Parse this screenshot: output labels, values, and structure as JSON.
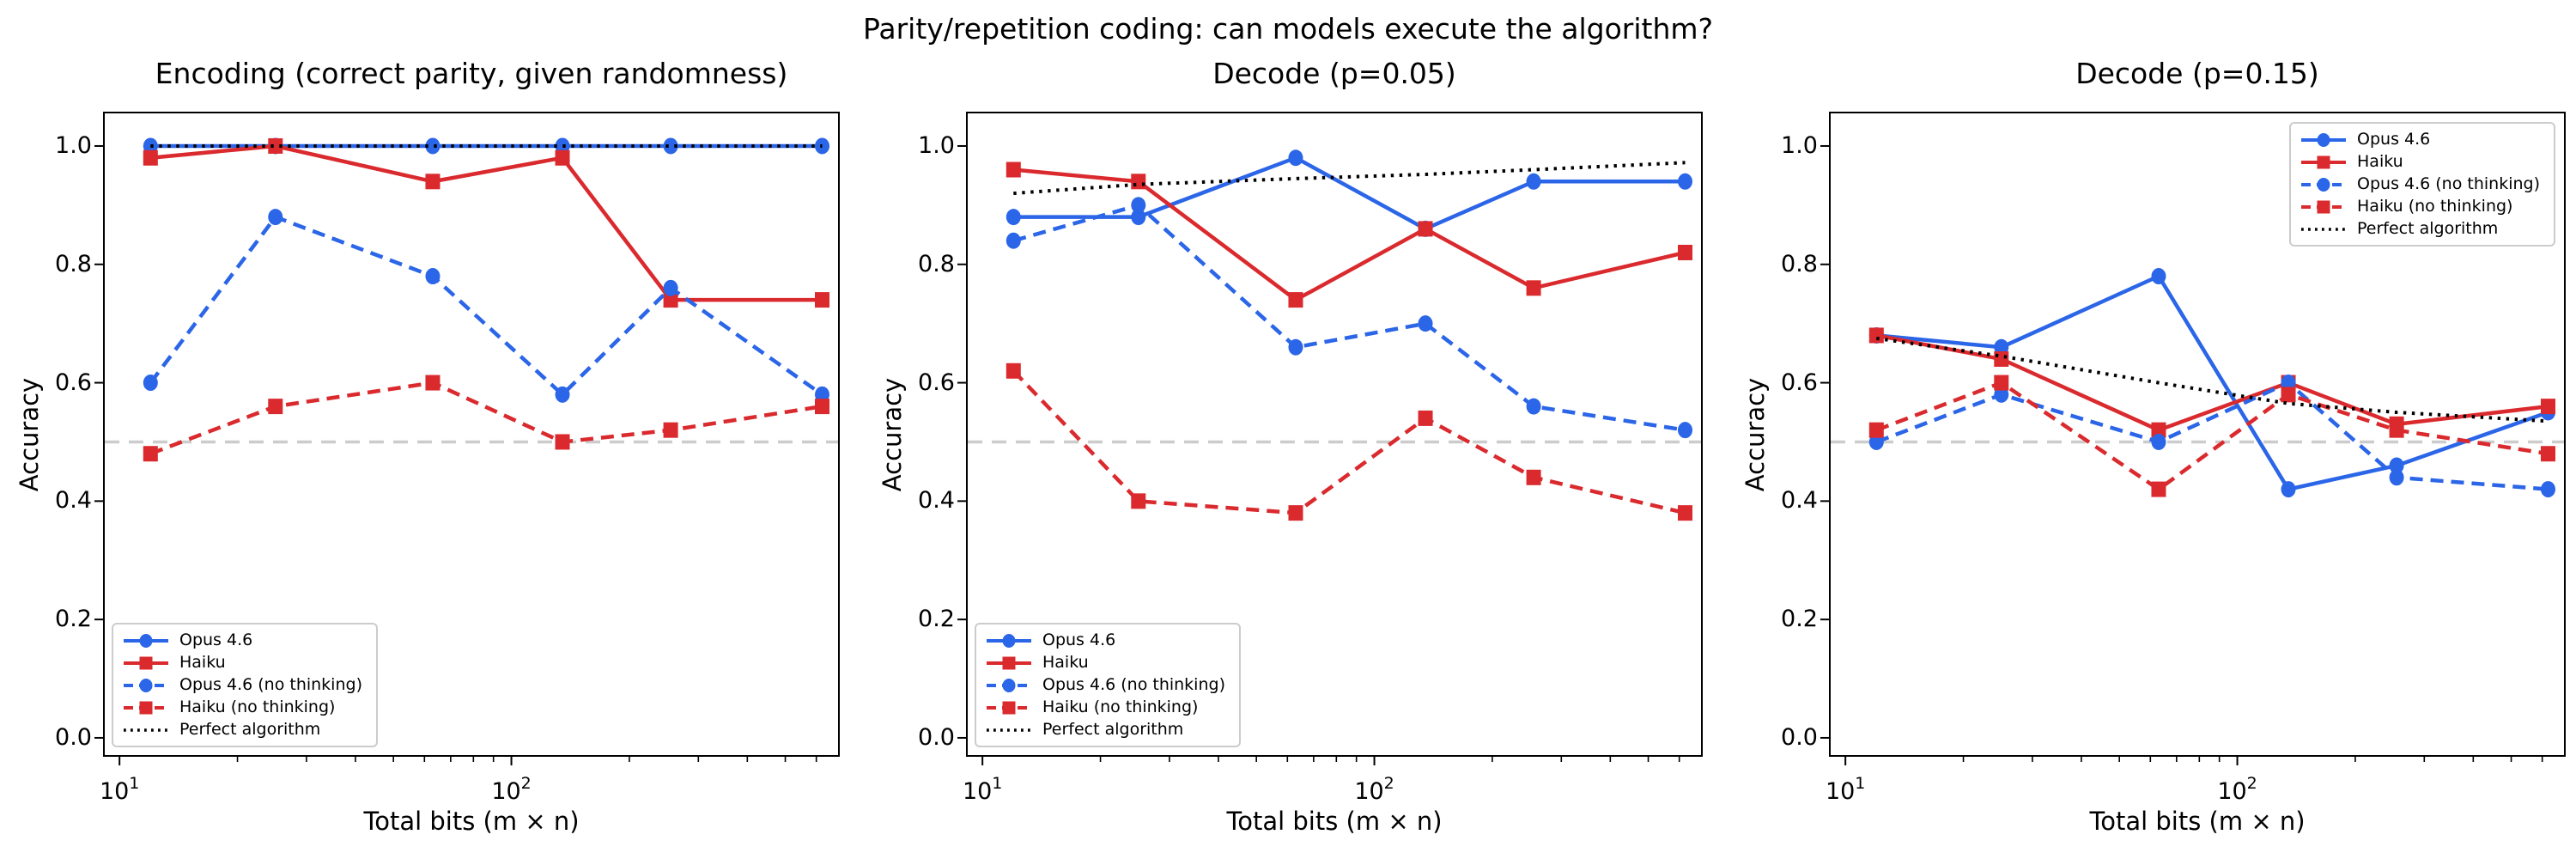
{
  "figure": {
    "suptitle": "Parity/repetition coding: can models execute the algorithm?",
    "background": "#ffffff"
  },
  "axis": {
    "xlabel": "Total bits (m × n)",
    "ylabel": "Accuracy",
    "x_scale": "log",
    "x_major_ticks": [
      {
        "text": "10",
        "sup": "1",
        "value": 10
      },
      {
        "text": "10",
        "sup": "2",
        "value": 100
      }
    ],
    "x_minor_ticks": [
      20,
      30,
      40,
      50,
      60,
      70,
      80,
      90,
      200,
      300,
      400,
      500,
      600
    ],
    "y_ticks": [
      "0.0",
      "0.2",
      "0.4",
      "0.6",
      "0.8",
      "1.0"
    ],
    "y_tick_values": [
      0.0,
      0.2,
      0.4,
      0.6,
      0.8,
      1.0
    ],
    "xlim_log10": [
      0.958,
      2.838
    ],
    "ylim": [
      -0.032,
      1.058
    ]
  },
  "chance_line": {
    "value": 0.5,
    "color": "#cccccc",
    "style": "dashed"
  },
  "colors": {
    "opus_blue": "#2b65e8",
    "haiku_red": "#da2a2e",
    "perfect_black": "#000000",
    "chance_gray": "#cccccc"
  },
  "chart_data": [
    {
      "type": "line",
      "title": "Encoding (correct parity, given randomness)",
      "xlabel": "Total bits (m × n)",
      "ylabel": "Accuracy",
      "x_scale": "log",
      "xlim": [
        9.1,
        689
      ],
      "ylim": [
        0.0,
        1.05
      ],
      "grid": false,
      "legend_position": "lower left",
      "x": [
        12,
        25,
        63,
        135,
        255,
        621
      ],
      "series": [
        {
          "name": "Opus 4.6",
          "color": "#2b65e8",
          "line": "solid",
          "marker": "circle",
          "values": [
            1.0,
            1.0,
            1.0,
            1.0,
            1.0,
            1.0
          ]
        },
        {
          "name": "Haiku",
          "color": "#da2a2e",
          "line": "solid",
          "marker": "square",
          "values": [
            0.98,
            1.0,
            0.94,
            0.98,
            0.74,
            0.74
          ]
        },
        {
          "name": "Opus 4.6 (no thinking)",
          "color": "#2b65e8",
          "line": "dashed",
          "marker": "circle",
          "values": [
            0.6,
            0.88,
            0.78,
            0.58,
            0.76,
            0.58
          ]
        },
        {
          "name": "Haiku (no thinking)",
          "color": "#da2a2e",
          "line": "dashed",
          "marker": "square",
          "values": [
            0.48,
            0.56,
            0.6,
            0.5,
            0.52,
            0.56
          ]
        },
        {
          "name": "Perfect algorithm",
          "color": "#000000",
          "line": "dotted",
          "marker": "none",
          "values": [
            1.0,
            1.0,
            1.0,
            1.0,
            1.0,
            1.0
          ]
        }
      ]
    },
    {
      "type": "line",
      "title": "Decode (p=0.05)",
      "xlabel": "Total bits (m × n)",
      "ylabel": "Accuracy",
      "x_scale": "log",
      "xlim": [
        9.1,
        689
      ],
      "ylim": [
        0.0,
        1.05
      ],
      "grid": false,
      "legend_position": "lower left",
      "x": [
        12,
        25,
        63,
        135,
        255,
        621
      ],
      "series": [
        {
          "name": "Opus 4.6",
          "color": "#2b65e8",
          "line": "solid",
          "marker": "circle",
          "values": [
            0.88,
            0.88,
            0.98,
            0.86,
            0.94,
            0.94
          ]
        },
        {
          "name": "Haiku",
          "color": "#da2a2e",
          "line": "solid",
          "marker": "square",
          "values": [
            0.96,
            0.94,
            0.74,
            0.86,
            0.76,
            0.82
          ]
        },
        {
          "name": "Opus 4.6 (no thinking)",
          "color": "#2b65e8",
          "line": "dashed",
          "marker": "circle",
          "values": [
            0.84,
            0.9,
            0.66,
            0.7,
            0.56,
            0.52
          ]
        },
        {
          "name": "Haiku (no thinking)",
          "color": "#da2a2e",
          "line": "dashed",
          "marker": "square",
          "values": [
            0.62,
            0.4,
            0.38,
            0.54,
            0.44,
            0.38
          ]
        },
        {
          "name": "Perfect algorithm",
          "color": "#000000",
          "line": "dotted",
          "marker": "none",
          "values": [
            0.92,
            0.935,
            0.945,
            0.952,
            0.96,
            0.972
          ]
        }
      ]
    },
    {
      "type": "line",
      "title": "Decode (p=0.15)",
      "xlabel": "Total bits (m × n)",
      "ylabel": "Accuracy",
      "x_scale": "log",
      "xlim": [
        9.1,
        689
      ],
      "ylim": [
        0.0,
        1.05
      ],
      "grid": false,
      "legend_position": "upper right",
      "x": [
        12,
        25,
        63,
        135,
        255,
        621
      ],
      "series": [
        {
          "name": "Opus 4.6",
          "color": "#2b65e8",
          "line": "solid",
          "marker": "circle",
          "values": [
            0.68,
            0.66,
            0.78,
            0.42,
            0.46,
            0.55
          ]
        },
        {
          "name": "Haiku",
          "color": "#da2a2e",
          "line": "solid",
          "marker": "square",
          "values": [
            0.68,
            0.64,
            0.52,
            0.6,
            0.53,
            0.56
          ]
        },
        {
          "name": "Opus 4.6 (no thinking)",
          "color": "#2b65e8",
          "line": "dashed",
          "marker": "circle",
          "values": [
            0.5,
            0.58,
            0.5,
            0.6,
            0.44,
            0.42
          ]
        },
        {
          "name": "Haiku (no thinking)",
          "color": "#da2a2e",
          "line": "dashed",
          "marker": "square",
          "values": [
            0.52,
            0.6,
            0.42,
            0.58,
            0.52,
            0.48
          ]
        },
        {
          "name": "Perfect algorithm",
          "color": "#000000",
          "line": "dotted",
          "marker": "none",
          "values": [
            0.675,
            0.645,
            0.6,
            0.565,
            0.55,
            0.535
          ]
        }
      ]
    }
  ]
}
